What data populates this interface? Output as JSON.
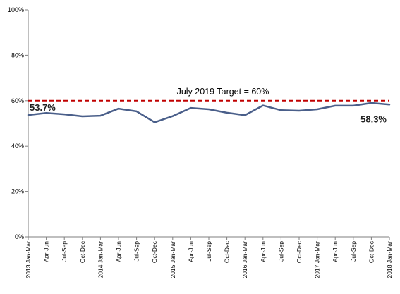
{
  "chart_data": {
    "type": "line",
    "title": "",
    "xlabel": "",
    "ylabel": "",
    "ylim": [
      0,
      100
    ],
    "yticks": [
      "0%",
      "20%",
      "40%",
      "60%",
      "80%",
      "100%"
    ],
    "ytick_values": [
      0,
      20,
      40,
      60,
      80,
      100
    ],
    "grid": false,
    "categories": [
      "2013 Jan-Mar",
      "Apr-Jun",
      "Jul-Sep",
      "Oct-Dec",
      "2014 Jan-Mar",
      "Apr-Jun",
      "Jul-Sep",
      "Oct-Dec",
      "2015 Jan-Mar",
      "Apr-Jun",
      "Jul-Sep",
      "Oct-Dec",
      "2016 Jan-Mar",
      "Apr-Jun",
      "Jul-Sep",
      "Oct-Dec",
      "2017 Jan-Mar",
      "Apr-Jun",
      "Jul-Sep",
      "Oct-Dec",
      "2018 Jan-Mar"
    ],
    "series": [
      {
        "values": [
          53.7,
          54.6,
          54.0,
          53.1,
          53.4,
          56.5,
          55.3,
          50.5,
          53.2,
          56.8,
          56.2,
          54.7,
          53.6,
          57.9,
          55.8,
          55.6,
          56.2,
          57.8,
          57.8,
          59.0,
          58.3
        ],
        "color": "#4a5f8a"
      }
    ],
    "target": {
      "label": "July 2019 Target = 60%",
      "value": 60,
      "color": "#c00000"
    },
    "annotations": [
      {
        "text": "53.7%",
        "index": 0
      },
      {
        "text": "58.3%",
        "index": 20
      }
    ]
  }
}
